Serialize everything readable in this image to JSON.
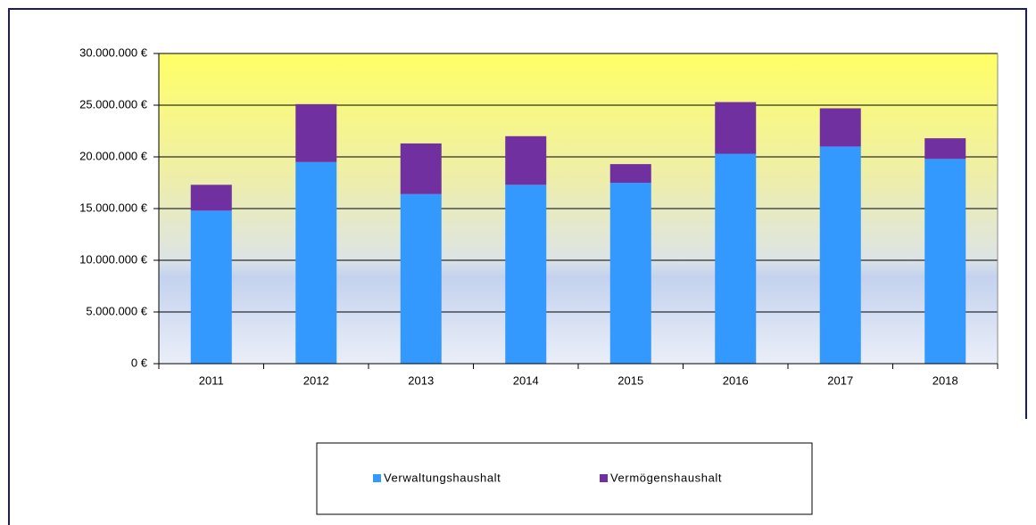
{
  "chart_data": {
    "type": "stacked_bar",
    "categories": [
      "2011",
      "2012",
      "2013",
      "2014",
      "2015",
      "2016",
      "2017",
      "2018"
    ],
    "series": [
      {
        "name": "Verwaltungshaushalt",
        "color": "#3399ff",
        "values": [
          14800000,
          19500000,
          16400000,
          17300000,
          17500000,
          20300000,
          21000000,
          19800000
        ]
      },
      {
        "name": "Vermögenshaushalt",
        "color": "#7030a0",
        "values": [
          2500000,
          5600000,
          4900000,
          4700000,
          1800000,
          5000000,
          3700000,
          2000000
        ]
      }
    ],
    "ylim": [
      0,
      30000000
    ],
    "yticks": [
      {
        "value": 0,
        "label": "0 €"
      },
      {
        "value": 5000000,
        "label": "5.000.000  €"
      },
      {
        "value": 10000000,
        "label": "10.000.000  €"
      },
      {
        "value": 15000000,
        "label": "15.000.000  €"
      },
      {
        "value": 20000000,
        "label": "20.000.000  €"
      },
      {
        "value": 25000000,
        "label": "25.000.000  €"
      },
      {
        "value": 30000000,
        "label": "30.000.000  €"
      }
    ],
    "grid": true
  }
}
